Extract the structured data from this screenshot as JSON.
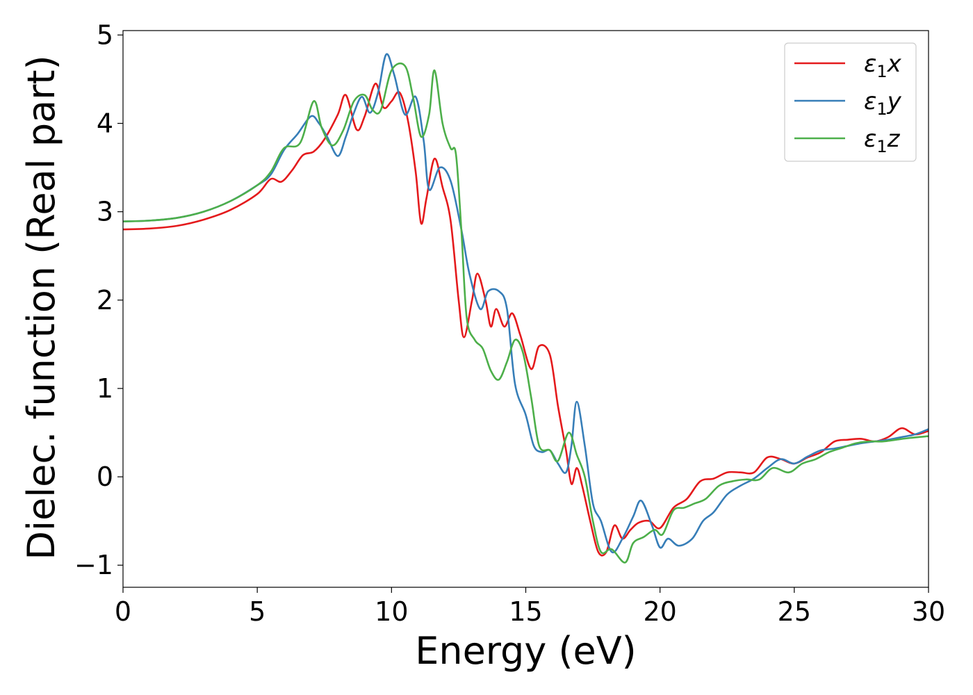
{
  "chart_data": {
    "type": "line",
    "xlabel": "Energy (eV)",
    "ylabel": "Dielec. function (Real part)",
    "xlim": [
      0,
      30
    ],
    "ylim": [
      -1.25,
      5.05
    ],
    "xticks": [
      0,
      5,
      10,
      15,
      20,
      25,
      30
    ],
    "xtick_labels": [
      "0",
      "5",
      "10",
      "15",
      "20",
      "25",
      "30"
    ],
    "yticks": [
      -1,
      0,
      1,
      2,
      3,
      4,
      5
    ],
    "ytick_labels": [
      "−1",
      "0",
      "1",
      "2",
      "3",
      "4",
      "5"
    ],
    "grid": false,
    "legend_position": "top-right",
    "series": [
      {
        "name": "ε₁x",
        "legend": {
          "base": "ε",
          "sub": "1",
          "var": "x"
        },
        "color": "#e41a1c",
        "points": [
          [
            0,
            2.8
          ],
          [
            1,
            2.81
          ],
          [
            2,
            2.84
          ],
          [
            3,
            2.91
          ],
          [
            4,
            3.02
          ],
          [
            5,
            3.2
          ],
          [
            5.5,
            3.37
          ],
          [
            5.9,
            3.34
          ],
          [
            6.3,
            3.47
          ],
          [
            6.7,
            3.64
          ],
          [
            7.1,
            3.68
          ],
          [
            7.5,
            3.82
          ],
          [
            8.0,
            4.1
          ],
          [
            8.3,
            4.32
          ],
          [
            8.7,
            3.93
          ],
          [
            9.0,
            4.08
          ],
          [
            9.4,
            4.45
          ],
          [
            9.7,
            4.18
          ],
          [
            10.0,
            4.25
          ],
          [
            10.3,
            4.35
          ],
          [
            10.6,
            4.05
          ],
          [
            10.9,
            3.45
          ],
          [
            11.1,
            2.87
          ],
          [
            11.3,
            3.15
          ],
          [
            11.6,
            3.6
          ],
          [
            11.9,
            3.28
          ],
          [
            12.2,
            2.9
          ],
          [
            12.5,
            2.0
          ],
          [
            12.7,
            1.58
          ],
          [
            13.0,
            2.0
          ],
          [
            13.2,
            2.3
          ],
          [
            13.5,
            2.0
          ],
          [
            13.7,
            1.7
          ],
          [
            13.9,
            1.9
          ],
          [
            14.2,
            1.7
          ],
          [
            14.5,
            1.85
          ],
          [
            14.8,
            1.6
          ],
          [
            15.2,
            1.22
          ],
          [
            15.5,
            1.48
          ],
          [
            15.9,
            1.38
          ],
          [
            16.2,
            0.8
          ],
          [
            16.5,
            0.3
          ],
          [
            16.7,
            -0.08
          ],
          [
            16.9,
            0.1
          ],
          [
            17.1,
            -0.1
          ],
          [
            17.4,
            -0.5
          ],
          [
            17.7,
            -0.85
          ],
          [
            18.0,
            -0.85
          ],
          [
            18.3,
            -0.55
          ],
          [
            18.6,
            -0.7
          ],
          [
            18.9,
            -0.6
          ],
          [
            19.2,
            -0.52
          ],
          [
            19.6,
            -0.5
          ],
          [
            20.0,
            -0.58
          ],
          [
            20.5,
            -0.35
          ],
          [
            21.0,
            -0.25
          ],
          [
            21.5,
            -0.05
          ],
          [
            22.0,
            -0.02
          ],
          [
            22.5,
            0.05
          ],
          [
            23.0,
            0.05
          ],
          [
            23.5,
            0.05
          ],
          [
            24.0,
            0.22
          ],
          [
            24.5,
            0.2
          ],
          [
            25.0,
            0.15
          ],
          [
            25.5,
            0.22
          ],
          [
            26.0,
            0.28
          ],
          [
            26.5,
            0.4
          ],
          [
            27.0,
            0.42
          ],
          [
            27.5,
            0.43
          ],
          [
            28.0,
            0.4
          ],
          [
            28.5,
            0.45
          ],
          [
            29.0,
            0.55
          ],
          [
            29.5,
            0.48
          ],
          [
            30.0,
            0.52
          ]
        ]
      },
      {
        "name": "ε₁y",
        "legend": {
          "base": "ε",
          "sub": "1",
          "var": "y"
        },
        "color": "#377eb8",
        "points": [
          [
            0,
            2.89
          ],
          [
            1,
            2.9
          ],
          [
            2,
            2.93
          ],
          [
            3,
            3.0
          ],
          [
            4,
            3.12
          ],
          [
            5,
            3.3
          ],
          [
            5.5,
            3.42
          ],
          [
            6.0,
            3.7
          ],
          [
            6.5,
            3.88
          ],
          [
            7.0,
            4.08
          ],
          [
            7.3,
            4.0
          ],
          [
            7.6,
            3.85
          ],
          [
            8.0,
            3.63
          ],
          [
            8.3,
            3.85
          ],
          [
            8.6,
            4.12
          ],
          [
            8.9,
            4.3
          ],
          [
            9.2,
            4.12
          ],
          [
            9.5,
            4.35
          ],
          [
            9.8,
            4.78
          ],
          [
            10.1,
            4.55
          ],
          [
            10.5,
            4.1
          ],
          [
            10.9,
            4.3
          ],
          [
            11.2,
            3.8
          ],
          [
            11.4,
            3.25
          ],
          [
            11.8,
            3.5
          ],
          [
            12.2,
            3.35
          ],
          [
            12.6,
            2.8
          ],
          [
            12.9,
            2.3
          ],
          [
            13.3,
            1.9
          ],
          [
            13.6,
            2.1
          ],
          [
            14.0,
            2.1
          ],
          [
            14.3,
            1.9
          ],
          [
            14.6,
            1.05
          ],
          [
            15.0,
            0.7
          ],
          [
            15.3,
            0.35
          ],
          [
            15.6,
            0.28
          ],
          [
            15.9,
            0.3
          ],
          [
            16.2,
            0.15
          ],
          [
            16.5,
            0.05
          ],
          [
            16.7,
            0.35
          ],
          [
            16.9,
            0.85
          ],
          [
            17.2,
            0.35
          ],
          [
            17.5,
            -0.3
          ],
          [
            17.8,
            -0.5
          ],
          [
            18.2,
            -0.85
          ],
          [
            18.6,
            -0.7
          ],
          [
            19.0,
            -0.45
          ],
          [
            19.3,
            -0.27
          ],
          [
            19.7,
            -0.55
          ],
          [
            20.0,
            -0.8
          ],
          [
            20.3,
            -0.7
          ],
          [
            20.7,
            -0.78
          ],
          [
            21.2,
            -0.7
          ],
          [
            21.6,
            -0.5
          ],
          [
            22.0,
            -0.4
          ],
          [
            22.5,
            -0.2
          ],
          [
            23.0,
            -0.1
          ],
          [
            23.5,
            -0.02
          ],
          [
            24.0,
            0.1
          ],
          [
            24.5,
            0.2
          ],
          [
            25.0,
            0.15
          ],
          [
            25.5,
            0.23
          ],
          [
            26.0,
            0.3
          ],
          [
            26.5,
            0.32
          ],
          [
            27.0,
            0.35
          ],
          [
            27.5,
            0.38
          ],
          [
            28.0,
            0.4
          ],
          [
            28.5,
            0.42
          ],
          [
            29.0,
            0.45
          ],
          [
            29.5,
            0.48
          ],
          [
            30.0,
            0.54
          ]
        ]
      },
      {
        "name": "ε₁z",
        "legend": {
          "base": "ε",
          "sub": "1",
          "var": "z"
        },
        "color": "#4daf4a",
        "points": [
          [
            0,
            2.89
          ],
          [
            1,
            2.9
          ],
          [
            2,
            2.93
          ],
          [
            3,
            3.0
          ],
          [
            4,
            3.12
          ],
          [
            5,
            3.3
          ],
          [
            5.5,
            3.45
          ],
          [
            6.0,
            3.72
          ],
          [
            6.6,
            3.78
          ],
          [
            7.1,
            4.25
          ],
          [
            7.4,
            3.95
          ],
          [
            7.8,
            3.75
          ],
          [
            8.2,
            3.92
          ],
          [
            8.6,
            4.25
          ],
          [
            9.0,
            4.32
          ],
          [
            9.3,
            4.15
          ],
          [
            9.6,
            4.15
          ],
          [
            10.0,
            4.6
          ],
          [
            10.5,
            4.65
          ],
          [
            10.8,
            4.3
          ],
          [
            11.1,
            3.85
          ],
          [
            11.4,
            4.1
          ],
          [
            11.6,
            4.6
          ],
          [
            11.9,
            4.0
          ],
          [
            12.2,
            3.72
          ],
          [
            12.4,
            3.65
          ],
          [
            12.6,
            2.8
          ],
          [
            12.8,
            1.8
          ],
          [
            13.1,
            1.55
          ],
          [
            13.4,
            1.45
          ],
          [
            13.7,
            1.2
          ],
          [
            14.0,
            1.1
          ],
          [
            14.3,
            1.3
          ],
          [
            14.6,
            1.55
          ],
          [
            14.9,
            1.4
          ],
          [
            15.2,
            0.9
          ],
          [
            15.5,
            0.35
          ],
          [
            15.9,
            0.3
          ],
          [
            16.2,
            0.18
          ],
          [
            16.6,
            0.5
          ],
          [
            16.9,
            0.25
          ],
          [
            17.2,
            0.0
          ],
          [
            17.5,
            -0.5
          ],
          [
            17.8,
            -0.85
          ],
          [
            18.2,
            -0.82
          ],
          [
            18.7,
            -0.97
          ],
          [
            19.0,
            -0.75
          ],
          [
            19.4,
            -0.68
          ],
          [
            19.8,
            -0.6
          ],
          [
            20.1,
            -0.65
          ],
          [
            20.5,
            -0.38
          ],
          [
            20.9,
            -0.35
          ],
          [
            21.3,
            -0.3
          ],
          [
            21.7,
            -0.25
          ],
          [
            22.2,
            -0.1
          ],
          [
            22.7,
            -0.05
          ],
          [
            23.2,
            -0.03
          ],
          [
            23.7,
            -0.03
          ],
          [
            24.2,
            0.1
          ],
          [
            24.8,
            0.05
          ],
          [
            25.3,
            0.15
          ],
          [
            25.8,
            0.2
          ],
          [
            26.3,
            0.28
          ],
          [
            26.8,
            0.33
          ],
          [
            27.3,
            0.38
          ],
          [
            27.8,
            0.4
          ],
          [
            28.3,
            0.4
          ],
          [
            28.8,
            0.42
          ],
          [
            29.3,
            0.44
          ],
          [
            30.0,
            0.46
          ]
        ]
      }
    ]
  }
}
